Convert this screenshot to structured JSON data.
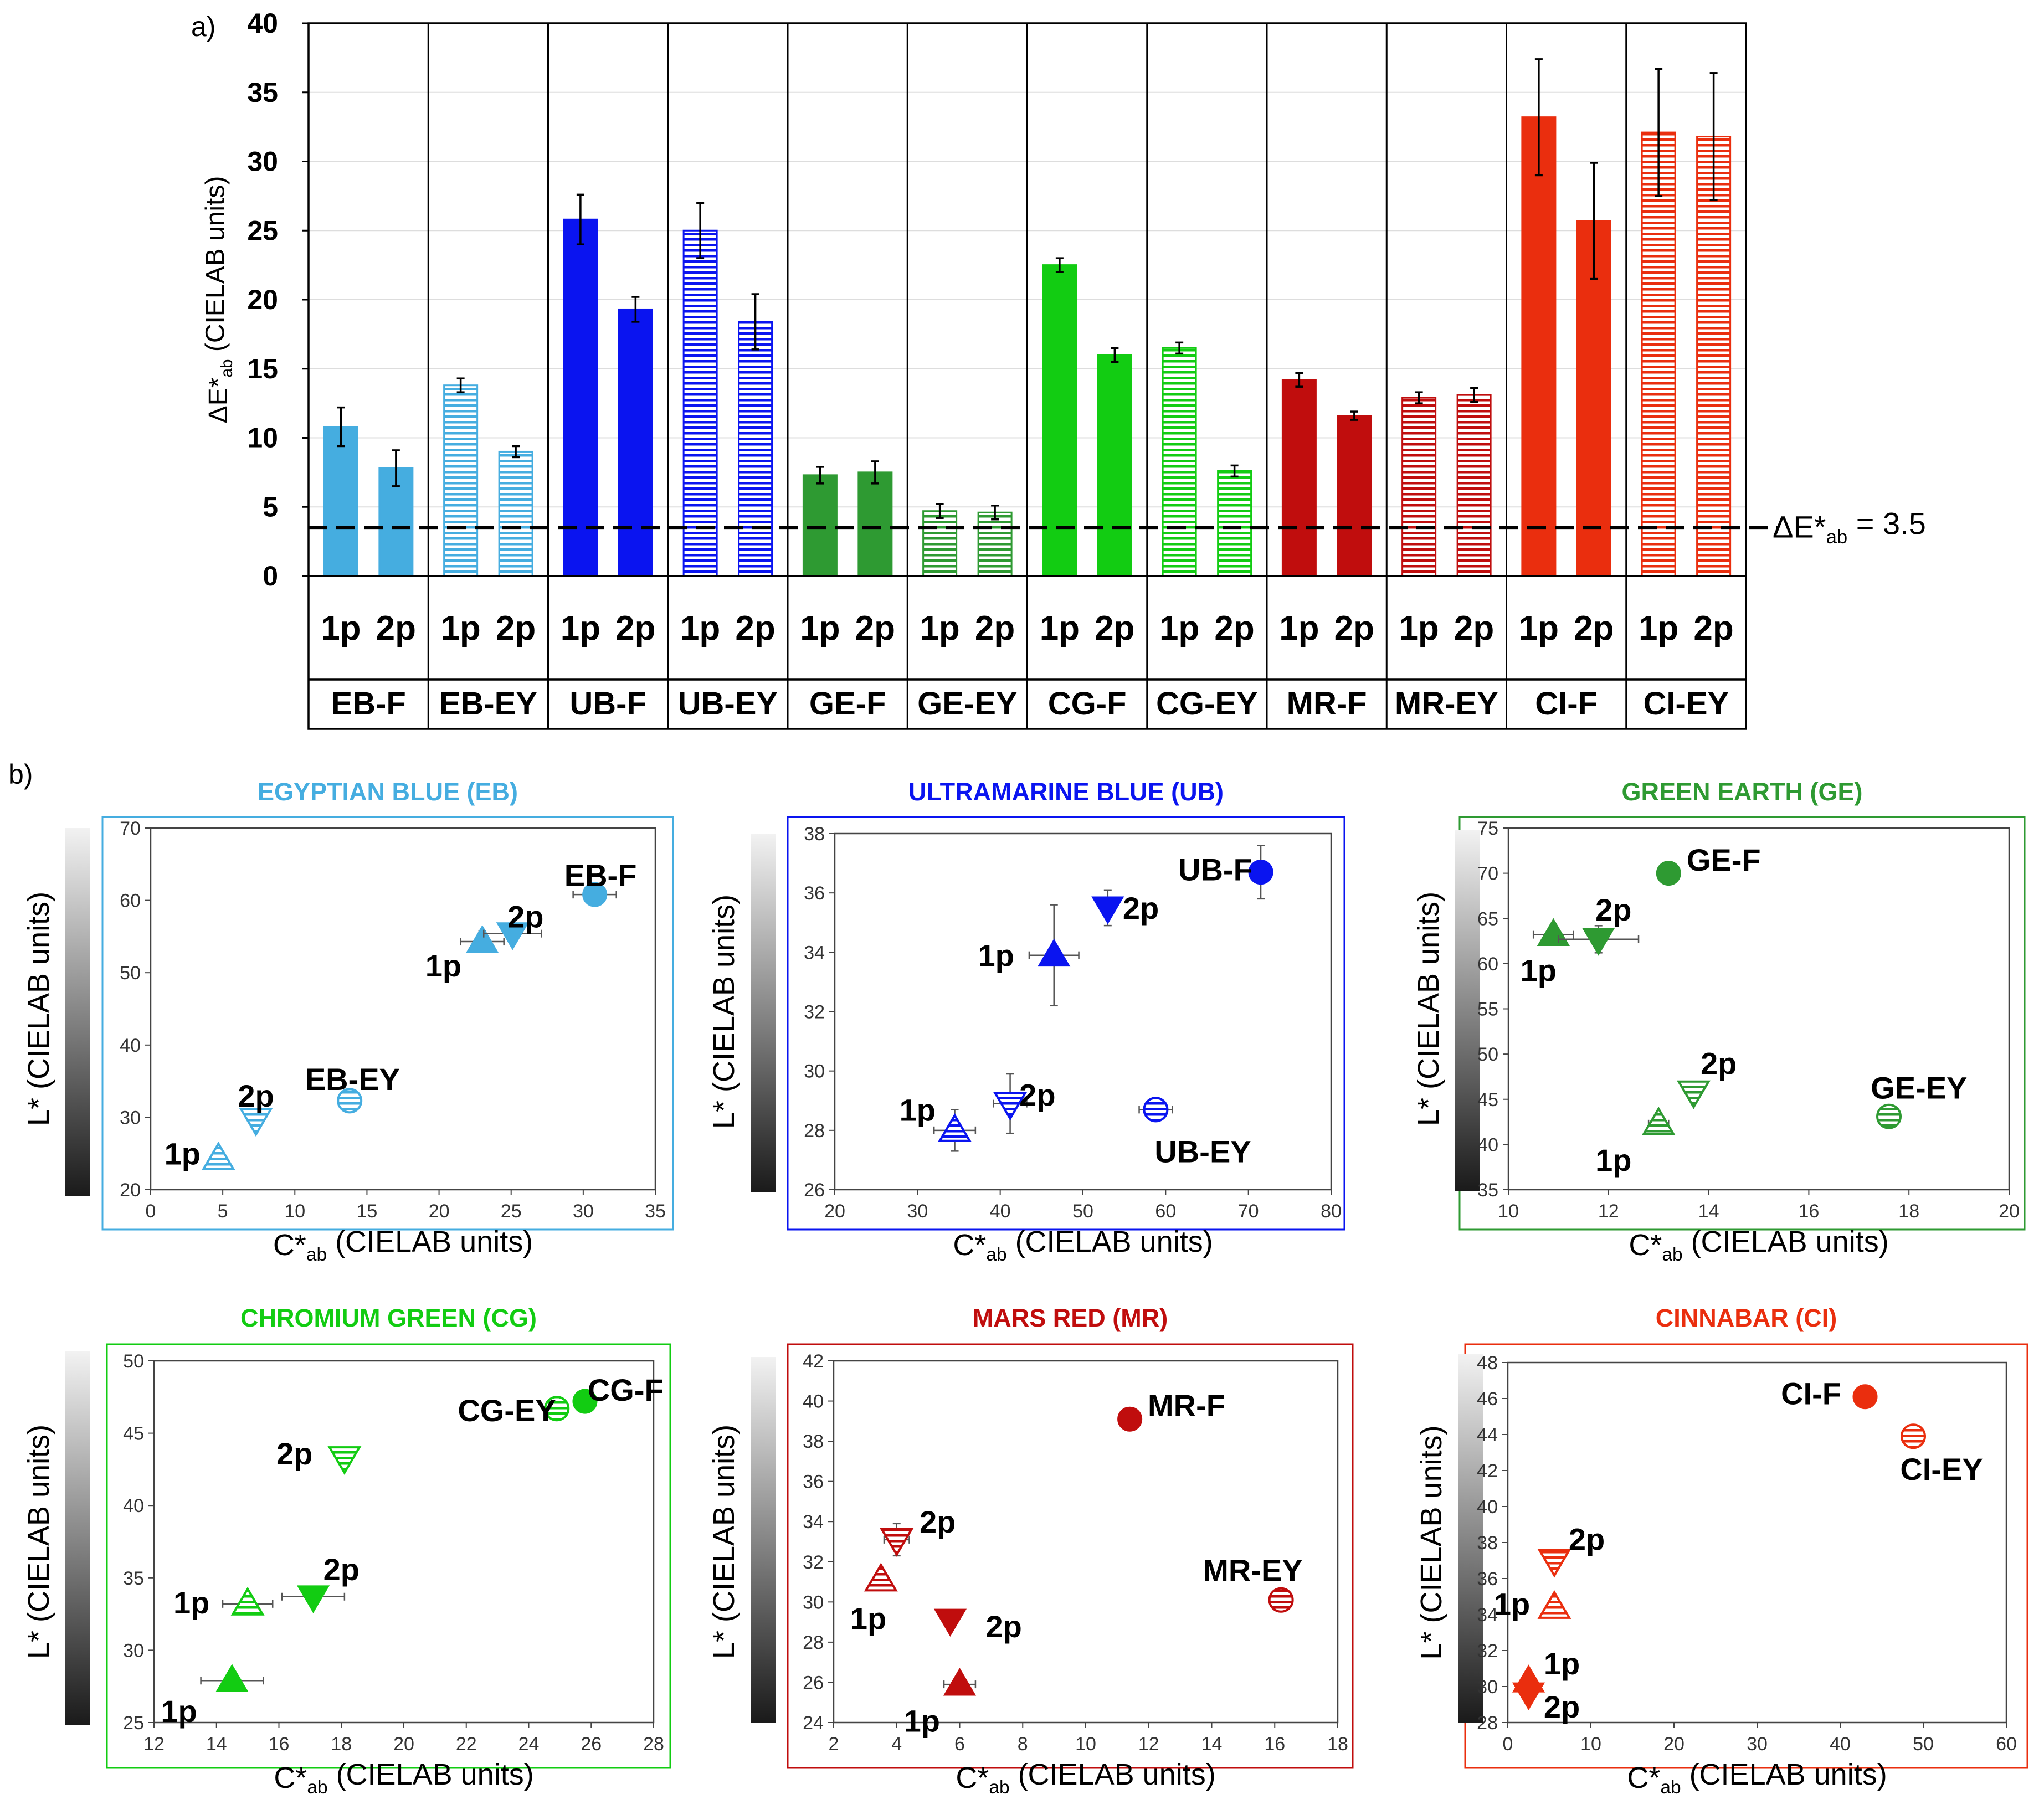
{
  "chart_data": [
    {
      "type": "bar",
      "panel_label": "a)",
      "ylabel": "ΔE*ab (CIELAB units)",
      "ylim": [
        0,
        40
      ],
      "yticks": [
        0,
        5,
        10,
        15,
        20,
        25,
        30,
        35,
        40
      ],
      "threshold": {
        "value": 3.5,
        "label": "ΔE*ab = 3.5"
      },
      "groups": [
        {
          "name": "EB-F",
          "color": "#45ADE0",
          "hatched": false,
          "bars": [
            {
              "label": "1p",
              "value": 10.8,
              "err": 1.4
            },
            {
              "label": "2p",
              "value": 7.8,
              "err": 1.3
            }
          ]
        },
        {
          "name": "EB-EY",
          "color": "#45ADE0",
          "hatched": true,
          "bars": [
            {
              "label": "1p",
              "value": 13.8,
              "err": 0.5
            },
            {
              "label": "2p",
              "value": 9.0,
              "err": 0.4
            }
          ]
        },
        {
          "name": "UB-F",
          "color": "#0A14F0",
          "hatched": false,
          "bars": [
            {
              "label": "1p",
              "value": 25.8,
              "err": 1.8
            },
            {
              "label": "2p",
              "value": 19.3,
              "err": 0.9
            }
          ]
        },
        {
          "name": "UB-EY",
          "color": "#0A14F0",
          "hatched": true,
          "bars": [
            {
              "label": "1p",
              "value": 25.0,
              "err": 2.0
            },
            {
              "label": "2p",
              "value": 18.4,
              "err": 2.0
            }
          ]
        },
        {
          "name": "GE-F",
          "color": "#2E9A32",
          "hatched": false,
          "bars": [
            {
              "label": "1p",
              "value": 7.3,
              "err": 0.6
            },
            {
              "label": "2p",
              "value": 7.5,
              "err": 0.8
            }
          ]
        },
        {
          "name": "GE-EY",
          "color": "#2E9A32",
          "hatched": true,
          "bars": [
            {
              "label": "1p",
              "value": 4.7,
              "err": 0.5
            },
            {
              "label": "2p",
              "value": 4.6,
              "err": 0.5
            }
          ]
        },
        {
          "name": "CG-F",
          "color": "#12CC12",
          "hatched": false,
          "bars": [
            {
              "label": "1p",
              "value": 22.5,
              "err": 0.5
            },
            {
              "label": "2p",
              "value": 16.0,
              "err": 0.5
            }
          ]
        },
        {
          "name": "CG-EY",
          "color": "#12CC12",
          "hatched": true,
          "bars": [
            {
              "label": "1p",
              "value": 16.5,
              "err": 0.4
            },
            {
              "label": "2p",
              "value": 7.6,
              "err": 0.4
            }
          ]
        },
        {
          "name": "MR-F",
          "color": "#C00D0D",
          "hatched": false,
          "bars": [
            {
              "label": "1p",
              "value": 14.2,
              "err": 0.5
            },
            {
              "label": "2p",
              "value": 11.6,
              "err": 0.3
            }
          ]
        },
        {
          "name": "MR-EY",
          "color": "#C00D0D",
          "hatched": true,
          "bars": [
            {
              "label": "1p",
              "value": 12.9,
              "err": 0.4
            },
            {
              "label": "2p",
              "value": 13.1,
              "err": 0.5
            }
          ]
        },
        {
          "name": "CI-F",
          "color": "#EA2E0E",
          "hatched": false,
          "bars": [
            {
              "label": "1p",
              "value": 33.2,
              "err": 4.2
            },
            {
              "label": "2p",
              "value": 25.7,
              "err": 4.2
            }
          ]
        },
        {
          "name": "CI-EY",
          "color": "#EA2E0E",
          "hatched": true,
          "bars": [
            {
              "label": "1p",
              "value": 32.1,
              "err": 4.6
            },
            {
              "label": "2p",
              "value": 31.8,
              "err": 4.6
            }
          ]
        }
      ]
    },
    {
      "type": "scatter",
      "panel_label": "b)",
      "title": "EGYPTIAN BLUE (EB)",
      "color": "#45ADE0",
      "xlabel": "C*ab (CIELAB units)",
      "ylabel": "L* (CIELAB units)",
      "xlim": [
        0,
        35
      ],
      "xticks": [
        0,
        5,
        10,
        15,
        20,
        25,
        30,
        35
      ],
      "ylim": [
        20,
        70
      ],
      "yticks": [
        20,
        30,
        40,
        50,
        60,
        70
      ],
      "points": [
        {
          "x": 30.8,
          "y": 60.8,
          "marker": "circle",
          "hatched": false,
          "xerr": 1.5,
          "yerr": 0.5
        },
        {
          "x": 23.0,
          "y": 54.3,
          "marker": "triangle-up",
          "hatched": false,
          "xerr": 1.5,
          "yerr": 1.5
        },
        {
          "x": 25.1,
          "y": 55.4,
          "marker": "triangle-down",
          "hatched": false,
          "xerr": 2.0,
          "yerr": 0.8
        },
        {
          "x": 13.8,
          "y": 32.3,
          "marker": "circle",
          "hatched": true,
          "xerr": 0.5,
          "yerr": 0.5
        },
        {
          "x": 4.7,
          "y": 24.3,
          "marker": "triangle-up",
          "hatched": true,
          "xerr": 0,
          "yerr": 0
        },
        {
          "x": 7.3,
          "y": 29.7,
          "marker": "triangle-down",
          "hatched": true,
          "xerr": 0,
          "yerr": 0
        }
      ],
      "annotations": [
        {
          "text": "EB-F",
          "x": 31.2,
          "y": 63.5
        },
        {
          "text": "2p",
          "x": 26.0,
          "y": 57.8
        },
        {
          "text": "1p",
          "x": 20.3,
          "y": 51.0
        },
        {
          "text": "EB-EY",
          "x": 14.0,
          "y": 35.3
        },
        {
          "text": "2p",
          "x": 7.3,
          "y": 33.0
        },
        {
          "text": "1p",
          "x": 2.2,
          "y": 25.0
        }
      ]
    },
    {
      "type": "scatter",
      "title": "ULTRAMARINE BLUE (UB)",
      "color": "#0A14F0",
      "xlabel": "C*ab (CIELAB units)",
      "ylabel": "L* (CIELAB units)",
      "xlim": [
        20,
        80
      ],
      "xticks": [
        20,
        30,
        40,
        50,
        60,
        70,
        80
      ],
      "ylim": [
        26,
        38
      ],
      "yticks": [
        26,
        28,
        30,
        32,
        34,
        36,
        38
      ],
      "points": [
        {
          "x": 71.5,
          "y": 36.7,
          "marker": "circle",
          "hatched": false,
          "xerr": 0,
          "yerr": 0.9
        },
        {
          "x": 53.0,
          "y": 35.5,
          "marker": "triangle-down",
          "hatched": false,
          "xerr": 0,
          "yerr": 0.6
        },
        {
          "x": 46.5,
          "y": 33.9,
          "marker": "triangle-up",
          "hatched": false,
          "xerr": 3.0,
          "yerr": 1.7
        },
        {
          "x": 58.8,
          "y": 28.7,
          "marker": "circle",
          "hatched": true,
          "xerr": 2.0,
          "yerr": 0.4
        },
        {
          "x": 34.5,
          "y": 28.0,
          "marker": "triangle-up",
          "hatched": true,
          "xerr": 2.5,
          "yerr": 0.7
        },
        {
          "x": 41.2,
          "y": 28.9,
          "marker": "triangle-down",
          "hatched": true,
          "xerr": 2.0,
          "yerr": 1.0
        }
      ],
      "annotations": [
        {
          "text": "UB-F",
          "x": 66.0,
          "y": 36.8
        },
        {
          "text": "2p",
          "x": 57.0,
          "y": 35.5
        },
        {
          "text": "1p",
          "x": 39.5,
          "y": 33.9
        },
        {
          "text": "2p",
          "x": 44.5,
          "y": 29.2
        },
        {
          "text": "1p",
          "x": 30.0,
          "y": 28.7
        },
        {
          "text": "UB-EY",
          "x": 64.5,
          "y": 27.3
        }
      ]
    },
    {
      "type": "scatter",
      "title": "GREEN EARTH (GE)",
      "color": "#2E9A32",
      "xlabel": "C*ab (CIELAB units)",
      "ylabel": "L* (CIELAB units)",
      "xlim": [
        10,
        20
      ],
      "xticks": [
        10,
        12,
        14,
        16,
        18,
        20
      ],
      "ylim": [
        35,
        75
      ],
      "yticks": [
        35,
        40,
        45,
        50,
        55,
        60,
        65,
        70,
        75
      ],
      "points": [
        {
          "x": 13.2,
          "y": 70.0,
          "marker": "circle",
          "hatched": false,
          "xerr": 0,
          "yerr": 0
        },
        {
          "x": 10.9,
          "y": 63.2,
          "marker": "triangle-up",
          "hatched": false,
          "xerr": 0.4,
          "yerr": 0.8
        },
        {
          "x": 11.8,
          "y": 62.7,
          "marker": "triangle-down",
          "hatched": false,
          "xerr": 0.8,
          "yerr": 1.5
        },
        {
          "x": 17.6,
          "y": 43.1,
          "marker": "circle",
          "hatched": true,
          "xerr": 0,
          "yerr": 0
        },
        {
          "x": 13.0,
          "y": 42.3,
          "marker": "triangle-up",
          "hatched": true,
          "xerr": 0.2,
          "yerr": 0
        },
        {
          "x": 13.7,
          "y": 45.8,
          "marker": "triangle-down",
          "hatched": true,
          "xerr": 0,
          "yerr": 0
        }
      ],
      "annotations": [
        {
          "text": "GE-F",
          "x": 14.3,
          "y": 71.5
        },
        {
          "text": "2p",
          "x": 12.1,
          "y": 66.0
        },
        {
          "text": "1p",
          "x": 10.6,
          "y": 59.3
        },
        {
          "text": "2p",
          "x": 14.2,
          "y": 49.0
        },
        {
          "text": "1p",
          "x": 12.1,
          "y": 38.3
        },
        {
          "text": "GE-EY",
          "x": 18.2,
          "y": 46.3
        }
      ]
    },
    {
      "type": "scatter",
      "title": "CHROMIUM GREEN (CG)",
      "color": "#12CC12",
      "xlabel": "C*ab (CIELAB units)",
      "ylabel": "L* (CIELAB units)",
      "xlim": [
        12,
        28
      ],
      "xticks": [
        12,
        14,
        16,
        18,
        20,
        22,
        24,
        26,
        28
      ],
      "ylim": [
        25,
        50
      ],
      "yticks": [
        25,
        30,
        35,
        40,
        45,
        50
      ],
      "points": [
        {
          "x": 25.8,
          "y": 47.2,
          "marker": "circle",
          "hatched": false,
          "xerr": 0,
          "yerr": 0
        },
        {
          "x": 24.9,
          "y": 46.7,
          "marker": "circle",
          "hatched": true,
          "xerr": 0,
          "yerr": 0
        },
        {
          "x": 18.1,
          "y": 43.3,
          "marker": "triangle-down",
          "hatched": true,
          "xerr": 0,
          "yerr": 0
        },
        {
          "x": 17.1,
          "y": 33.7,
          "marker": "triangle-down",
          "hatched": false,
          "xerr": 1.0,
          "yerr": 0.5
        },
        {
          "x": 15.0,
          "y": 33.2,
          "marker": "triangle-up",
          "hatched": true,
          "xerr": 0.8,
          "yerr": 0.4
        },
        {
          "x": 14.5,
          "y": 27.9,
          "marker": "triangle-up",
          "hatched": false,
          "xerr": 1.0,
          "yerr": 0.4
        }
      ],
      "annotations": [
        {
          "text": "CG-F",
          "x": 27.1,
          "y": 48.0
        },
        {
          "text": "CG-EY",
          "x": 23.3,
          "y": 46.6
        },
        {
          "text": "2p",
          "x": 16.5,
          "y": 43.6
        },
        {
          "text": "2p",
          "x": 18.0,
          "y": 35.6
        },
        {
          "text": "1p",
          "x": 13.2,
          "y": 33.3
        },
        {
          "text": "1p",
          "x": 12.8,
          "y": 25.8
        }
      ]
    },
    {
      "type": "scatter",
      "title": "MARS RED (MR)",
      "color": "#C00D0D",
      "xlabel": "C*ab (CIELAB units)",
      "ylabel": "L* (CIELAB units)",
      "xlim": [
        2,
        18
      ],
      "xticks": [
        2,
        4,
        6,
        8,
        10,
        12,
        14,
        16,
        18
      ],
      "ylim": [
        24,
        42
      ],
      "yticks": [
        24,
        26,
        28,
        30,
        32,
        34,
        36,
        38,
        40,
        42
      ],
      "points": [
        {
          "x": 11.4,
          "y": 39.1,
          "marker": "circle",
          "hatched": false,
          "xerr": 0,
          "yerr": 0
        },
        {
          "x": 16.2,
          "y": 30.1,
          "marker": "circle",
          "hatched": true,
          "xerr": 0,
          "yerr": 0
        },
        {
          "x": 4.0,
          "y": 33.1,
          "marker": "triangle-down",
          "hatched": true,
          "xerr": 0.4,
          "yerr": 0.8
        },
        {
          "x": 3.5,
          "y": 31.1,
          "marker": "triangle-up",
          "hatched": true,
          "xerr": 0,
          "yerr": 0.5
        },
        {
          "x": 5.7,
          "y": 29.1,
          "marker": "triangle-down",
          "hatched": false,
          "xerr": 0,
          "yerr": 0
        },
        {
          "x": 6.0,
          "y": 25.9,
          "marker": "triangle-up",
          "hatched": false,
          "xerr": 0.5,
          "yerr": 0.3
        }
      ],
      "annotations": [
        {
          "text": "MR-F",
          "x": 13.2,
          "y": 39.8
        },
        {
          "text": "MR-EY",
          "x": 15.3,
          "y": 31.6
        },
        {
          "text": "2p",
          "x": 5.3,
          "y": 34.0
        },
        {
          "text": "1p",
          "x": 3.1,
          "y": 29.2
        },
        {
          "text": "2p",
          "x": 7.4,
          "y": 28.8
        },
        {
          "text": "1p",
          "x": 4.8,
          "y": 24.1
        }
      ]
    },
    {
      "type": "scatter",
      "title": "CINNABAR (CI)",
      "color": "#EA2E0E",
      "xlabel": "C*ab (CIELAB units)",
      "ylabel": "L* (CIELAB units)",
      "xlim": [
        0,
        60
      ],
      "xticks": [
        0,
        10,
        20,
        30,
        40,
        50,
        60
      ],
      "ylim": [
        28,
        48
      ],
      "yticks": [
        28,
        30,
        32,
        34,
        36,
        38,
        40,
        42,
        44,
        46,
        48
      ],
      "points": [
        {
          "x": 43.0,
          "y": 46.1,
          "marker": "circle",
          "hatched": false,
          "xerr": 0,
          "yerr": 0
        },
        {
          "x": 48.8,
          "y": 43.9,
          "marker": "circle",
          "hatched": true,
          "xerr": 0,
          "yerr": 0
        },
        {
          "x": 5.6,
          "y": 37.0,
          "marker": "triangle-down",
          "hatched": true,
          "xerr": 0,
          "yerr": 0
        },
        {
          "x": 5.6,
          "y": 34.4,
          "marker": "triangle-up",
          "hatched": true,
          "xerr": 0,
          "yerr": 0
        },
        {
          "x": 2.5,
          "y": 30.3,
          "marker": "triangle-up",
          "hatched": false,
          "xerr": 0,
          "yerr": 0
        },
        {
          "x": 2.5,
          "y": 29.6,
          "marker": "triangle-down",
          "hatched": false,
          "xerr": 0,
          "yerr": 0
        }
      ],
      "annotations": [
        {
          "text": "CI-F",
          "x": 36.5,
          "y": 46.3
        },
        {
          "text": "CI-EY",
          "x": 52.2,
          "y": 42.1
        },
        {
          "text": "2p",
          "x": 9.5,
          "y": 38.2
        },
        {
          "text": "1p",
          "x": 0.5,
          "y": 34.6
        },
        {
          "text": "1p",
          "x": 6.5,
          "y": 31.3
        },
        {
          "text": "2p",
          "x": 6.5,
          "y": 28.9
        }
      ]
    }
  ]
}
